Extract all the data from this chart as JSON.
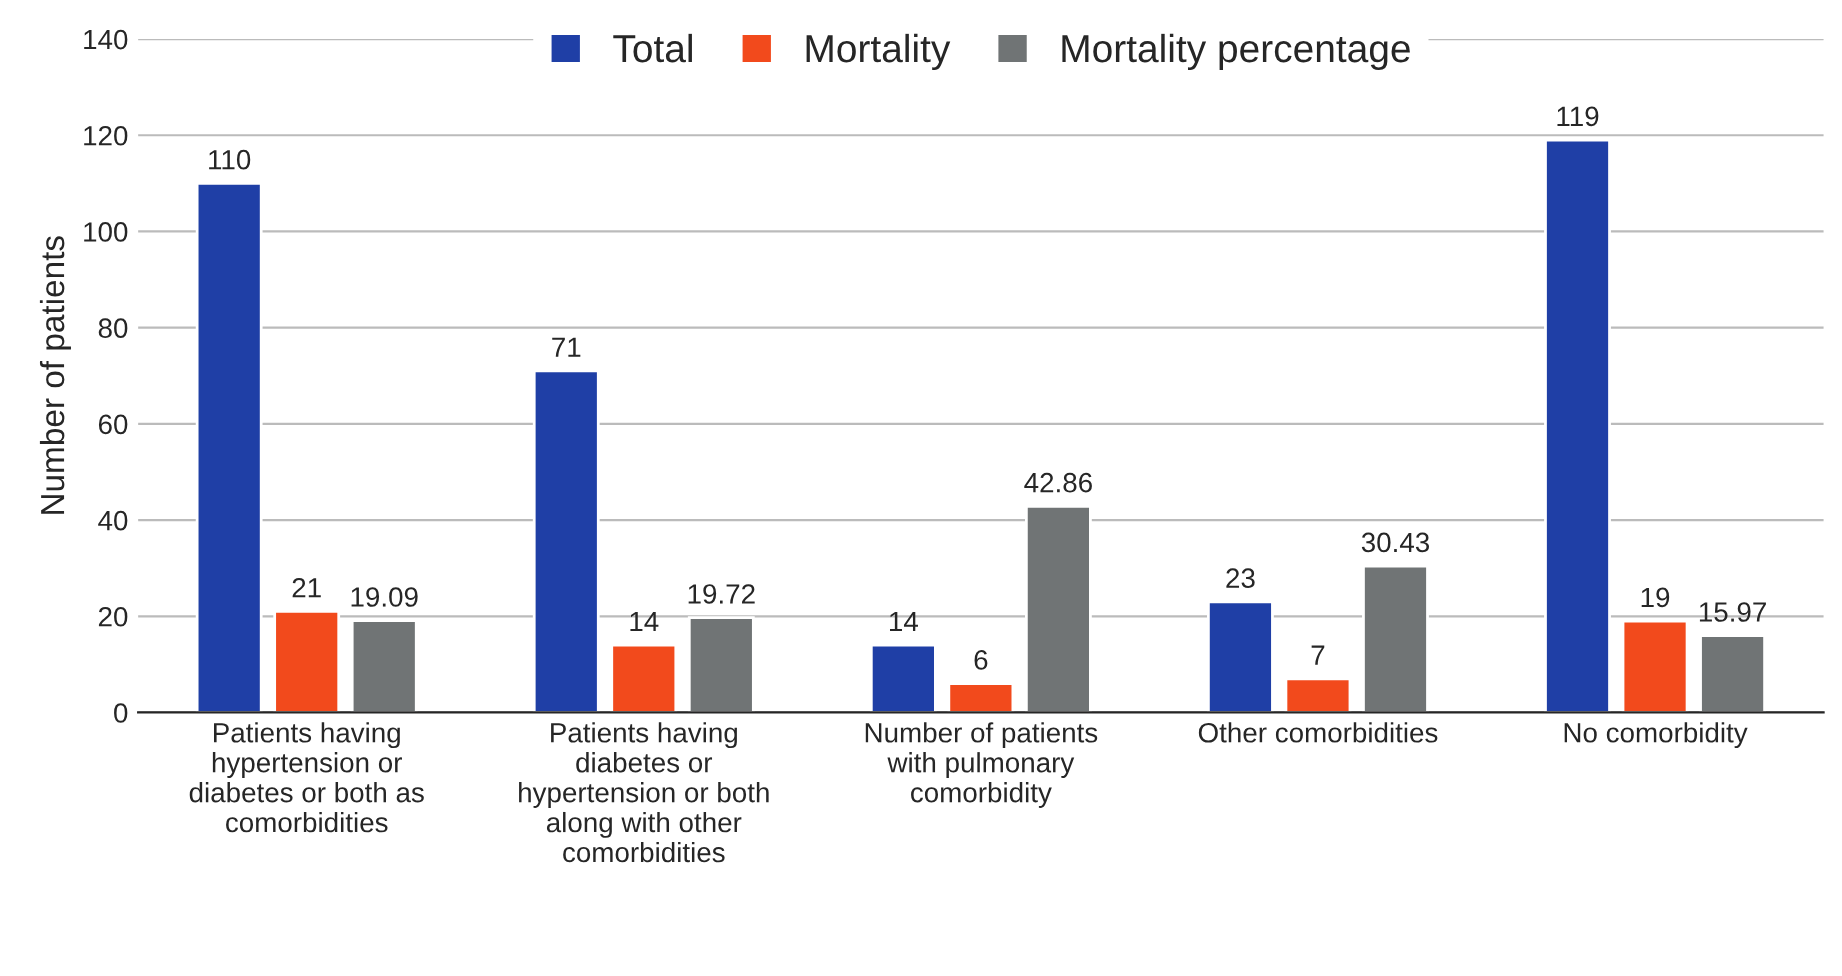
{
  "chart_data": {
    "type": "bar",
    "ylabel": "Number of patients",
    "categories": [
      "Patients having hypertension or diabetes or both as comorbidities",
      "Patients having diabetes or hypertension or both along with other comorbidities",
      "Number of patients with pulmonary comorbidity",
      "Other comorbidities",
      "No comorbidity"
    ],
    "series": [
      {
        "name": "Total",
        "color": "#1f3fa6",
        "values": [
          110,
          71,
          14,
          23,
          119
        ]
      },
      {
        "name": "Mortality",
        "color": "#f24a1c",
        "values": [
          21,
          14,
          6,
          7,
          19
        ]
      },
      {
        "name": "Mortality percentage",
        "color": "#707475",
        "values": [
          19.09,
          19.72,
          42.86,
          30.43,
          15.97
        ]
      }
    ],
    "ylim": [
      0,
      140
    ],
    "yticks": [
      0,
      20,
      40,
      60,
      80,
      100,
      120,
      140
    ],
    "grid": "y",
    "legend": "top",
    "data_labels": true
  }
}
